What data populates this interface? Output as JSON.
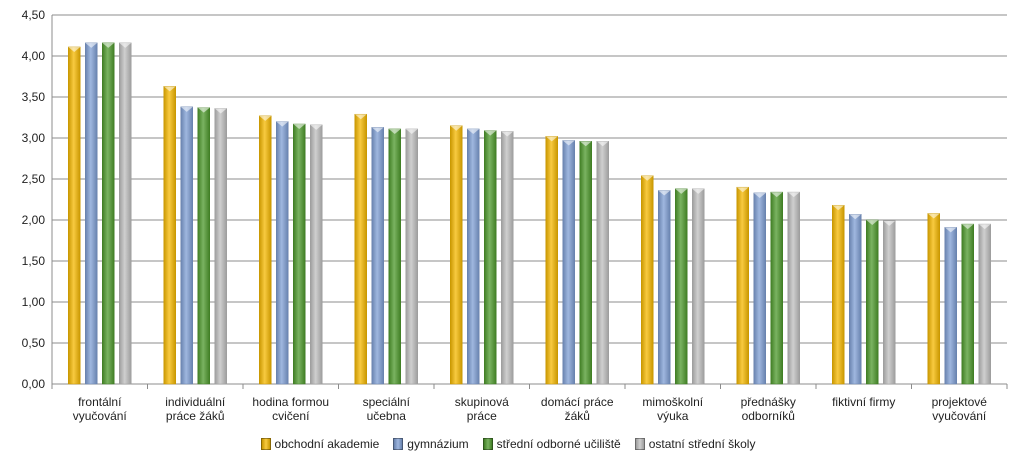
{
  "chart_data": {
    "type": "bar",
    "categories": [
      [
        "frontální",
        "vyučování"
      ],
      [
        "individuální",
        "práce žáků"
      ],
      [
        "hodina formou",
        "cvičení"
      ],
      [
        "speciální",
        "učebna"
      ],
      [
        "skupinová",
        "práce"
      ],
      [
        "domácí práce",
        "žáků"
      ],
      [
        "mimoškolní",
        "výuka"
      ],
      [
        "přednášky",
        "odborníků"
      ],
      [
        "fiktivní firmy"
      ],
      [
        "projektové",
        "vyučování"
      ]
    ],
    "series": [
      {
        "name": "obchodní akademie",
        "color": "#F5B800",
        "values": [
          4.11,
          3.63,
          3.27,
          3.29,
          3.15,
          3.02,
          2.54,
          2.4,
          2.18,
          2.08
        ]
      },
      {
        "name": "gymnázium",
        "color": "#7F9FD4",
        "values": [
          4.16,
          3.38,
          3.2,
          3.13,
          3.11,
          2.97,
          2.36,
          2.33,
          2.07,
          1.91
        ]
      },
      {
        "name": "střední odborné učiliště",
        "color": "#4E9A2C",
        "values": [
          4.16,
          3.37,
          3.17,
          3.11,
          3.09,
          2.96,
          2.38,
          2.34,
          2.0,
          1.95
        ]
      },
      {
        "name": "ostatní střední školy",
        "color": "#BFBFBF",
        "values": [
          4.16,
          3.36,
          3.16,
          3.11,
          3.08,
          2.96,
          2.38,
          2.34,
          1.99,
          1.95
        ]
      }
    ],
    "y_ticks": [
      "0,00",
      "0,50",
      "1,00",
      "1,50",
      "2,00",
      "2,50",
      "3,00",
      "3,50",
      "4,00",
      "4,50"
    ],
    "ylim": [
      0,
      4.5
    ],
    "grid": true,
    "legend_position": "bottom"
  }
}
